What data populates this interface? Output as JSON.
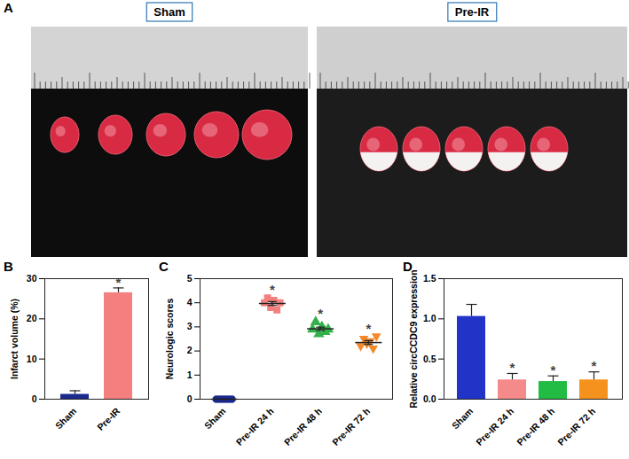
{
  "panel_a": {
    "title": "A",
    "photos": [
      {
        "title": "Sham"
      },
      {
        "title": "Pre-IR"
      }
    ]
  },
  "chart_data": [
    {
      "title": "B",
      "type": "bar",
      "categories": [
        "Sham",
        "Pre-IR"
      ],
      "values": [
        1.2,
        26.5
      ],
      "errors": [
        0.9,
        1.2
      ],
      "colors": [
        "#1b2a8f",
        "#f47f7f"
      ],
      "ylabel": "Infarct volume (%)",
      "ylim": [
        0,
        30
      ],
      "yticks": [
        0,
        10,
        20,
        30
      ],
      "annotations": [
        {
          "category": "Pre-IR",
          "text": "*"
        }
      ]
    },
    {
      "title": "C",
      "type": "scatter",
      "ylabel": "Neurologic scores",
      "ylim": [
        0,
        5
      ],
      "yticks": [
        0,
        1,
        2,
        3,
        4,
        5
      ],
      "series": [
        {
          "name": "Sham",
          "color": "#1b2a8f",
          "marker": "circle",
          "values": [
            0,
            0,
            0,
            0,
            0,
            0
          ],
          "mean": 0,
          "error": 0
        },
        {
          "name": "Pre-IR 24 h",
          "color": "#f47f7f",
          "marker": "square",
          "values": [
            4.0,
            4.2,
            3.8,
            4.1,
            3.7,
            4.0
          ],
          "mean": 3.97,
          "error": 0.08
        },
        {
          "name": "Pre-IR 48 h",
          "color": "#33b04a",
          "marker": "triangle",
          "values": [
            2.9,
            3.2,
            2.7,
            3.0,
            2.8,
            2.9
          ],
          "mean": 2.92,
          "error": 0.07
        },
        {
          "name": "Pre-IR 72 h",
          "color": "#f5892a",
          "marker": "triangle-down",
          "values": [
            2.2,
            2.5,
            2.3,
            2.4,
            2.1,
            2.6
          ],
          "mean": 2.35,
          "error": 0.08
        }
      ],
      "annotations": [
        {
          "category": "Pre-IR 24 h",
          "text": "*"
        },
        {
          "category": "Pre-IR 48 h",
          "text": "*"
        },
        {
          "category": "Pre-IR 72 h",
          "text": "*"
        }
      ]
    },
    {
      "title": "D",
      "type": "bar",
      "categories": [
        "Sham",
        "Pre-IR 24 h",
        "Pre-IR 48 h",
        "Pre-IR 72 h"
      ],
      "values": [
        1.03,
        0.24,
        0.22,
        0.24
      ],
      "errors": [
        0.15,
        0.08,
        0.07,
        0.1
      ],
      "colors": [
        "#2233c8",
        "#f48a8a",
        "#22bb44",
        "#f5921e"
      ],
      "ylabel": "Relative circCCDC9 expression",
      "ylim": [
        0,
        1.5
      ],
      "yticks": [
        {
          "value": 0,
          "label": "0.0"
        },
        {
          "value": 0.5,
          "label": "0.5"
        },
        {
          "value": 1,
          "label": "1.0"
        },
        {
          "value": 1.5,
          "label": "1.5"
        }
      ],
      "annotations": [
        {
          "category": "Pre-IR 24 h",
          "text": "*"
        },
        {
          "category": "Pre-IR 48 h",
          "text": "*"
        },
        {
          "category": "Pre-IR 72 h",
          "text": "*"
        }
      ]
    }
  ]
}
